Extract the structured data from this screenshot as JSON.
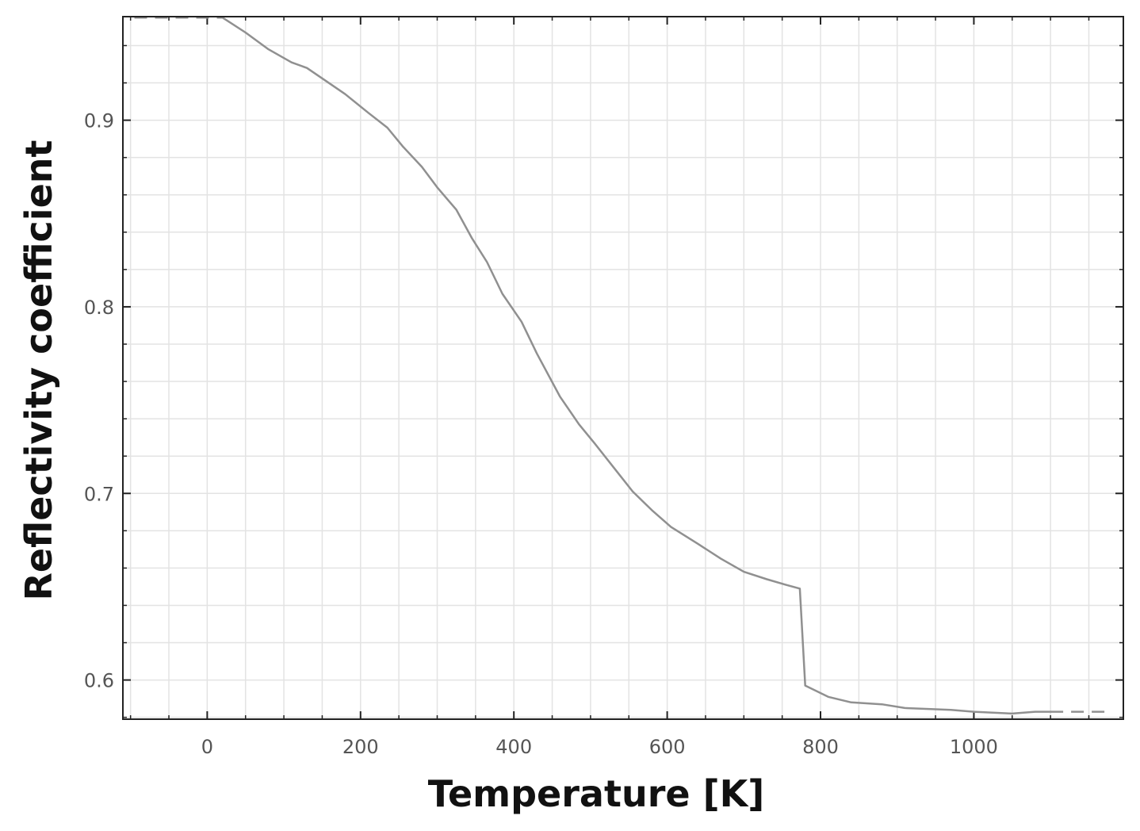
{
  "chart_data": {
    "type": "line",
    "title": "",
    "xlabel": "Temperature [K]",
    "ylabel": "Reflectivity coefficient",
    "xlim": [
      -110,
      1195
    ],
    "ylim": [
      0.579,
      0.9555
    ],
    "x_ticks": [
      0,
      200,
      400,
      600,
      800,
      1000
    ],
    "x_tick_labels": [
      "0",
      "200",
      "400",
      "600",
      "800",
      "1000"
    ],
    "y_ticks": [
      0.6,
      0.7,
      0.8,
      0.9
    ],
    "y_tick_labels": [
      "0.6",
      "0.7",
      "0.8",
      "0.9"
    ],
    "x_minor_ticks": [
      -100,
      -50,
      50,
      100,
      150,
      250,
      300,
      350,
      450,
      500,
      550,
      650,
      700,
      750,
      850,
      900,
      950,
      1050,
      1100,
      1150
    ],
    "y_minor_ticks": [
      0.58,
      0.62,
      0.64,
      0.66,
      0.68,
      0.72,
      0.74,
      0.76,
      0.78,
      0.82,
      0.84,
      0.86,
      0.88,
      0.92,
      0.94
    ],
    "grid": true,
    "series": [
      {
        "values": [
          [
            20,
            0.955
          ],
          [
            50,
            0.947
          ],
          [
            80,
            0.938
          ],
          [
            110,
            0.931
          ],
          [
            130,
            0.928
          ],
          [
            155,
            0.921
          ],
          [
            180,
            0.914
          ],
          [
            210,
            0.904
          ],
          [
            235,
            0.896
          ],
          [
            255,
            0.886
          ],
          [
            280,
            0.875
          ],
          [
            300,
            0.864
          ],
          [
            325,
            0.852
          ],
          [
            345,
            0.837
          ],
          [
            365,
            0.824
          ],
          [
            385,
            0.807
          ],
          [
            410,
            0.792
          ],
          [
            430,
            0.775
          ],
          [
            460,
            0.752
          ],
          [
            485,
            0.737
          ],
          [
            505,
            0.727
          ],
          [
            530,
            0.714
          ],
          [
            555,
            0.701
          ],
          [
            580,
            0.691
          ],
          [
            605,
            0.682
          ],
          [
            640,
            0.673
          ],
          [
            670,
            0.665
          ],
          [
            700,
            0.658
          ],
          [
            730,
            0.654
          ],
          [
            755,
            0.651
          ],
          [
            773,
            0.649
          ],
          [
            780,
            0.597
          ],
          [
            810,
            0.591
          ],
          [
            840,
            0.588
          ],
          [
            880,
            0.587
          ],
          [
            910,
            0.585
          ],
          [
            970,
            0.584
          ],
          [
            1000,
            0.583
          ],
          [
            1050,
            0.582
          ],
          [
            1080,
            0.583
          ],
          [
            1100,
            0.583
          ]
        ]
      }
    ],
    "extrapolation": [
      {
        "values": [
          [
            -95,
            0.955
          ],
          [
            20,
            0.955
          ]
        ],
        "style": "dashed"
      },
      {
        "values": [
          [
            1100,
            0.583
          ],
          [
            1180,
            0.583
          ]
        ],
        "style": "dashed"
      }
    ],
    "colors": {
      "line": "#909090",
      "axis": "#222222",
      "grid": "#e3e3e3",
      "tick_label": "#555555",
      "axis_title": "#111111"
    }
  }
}
